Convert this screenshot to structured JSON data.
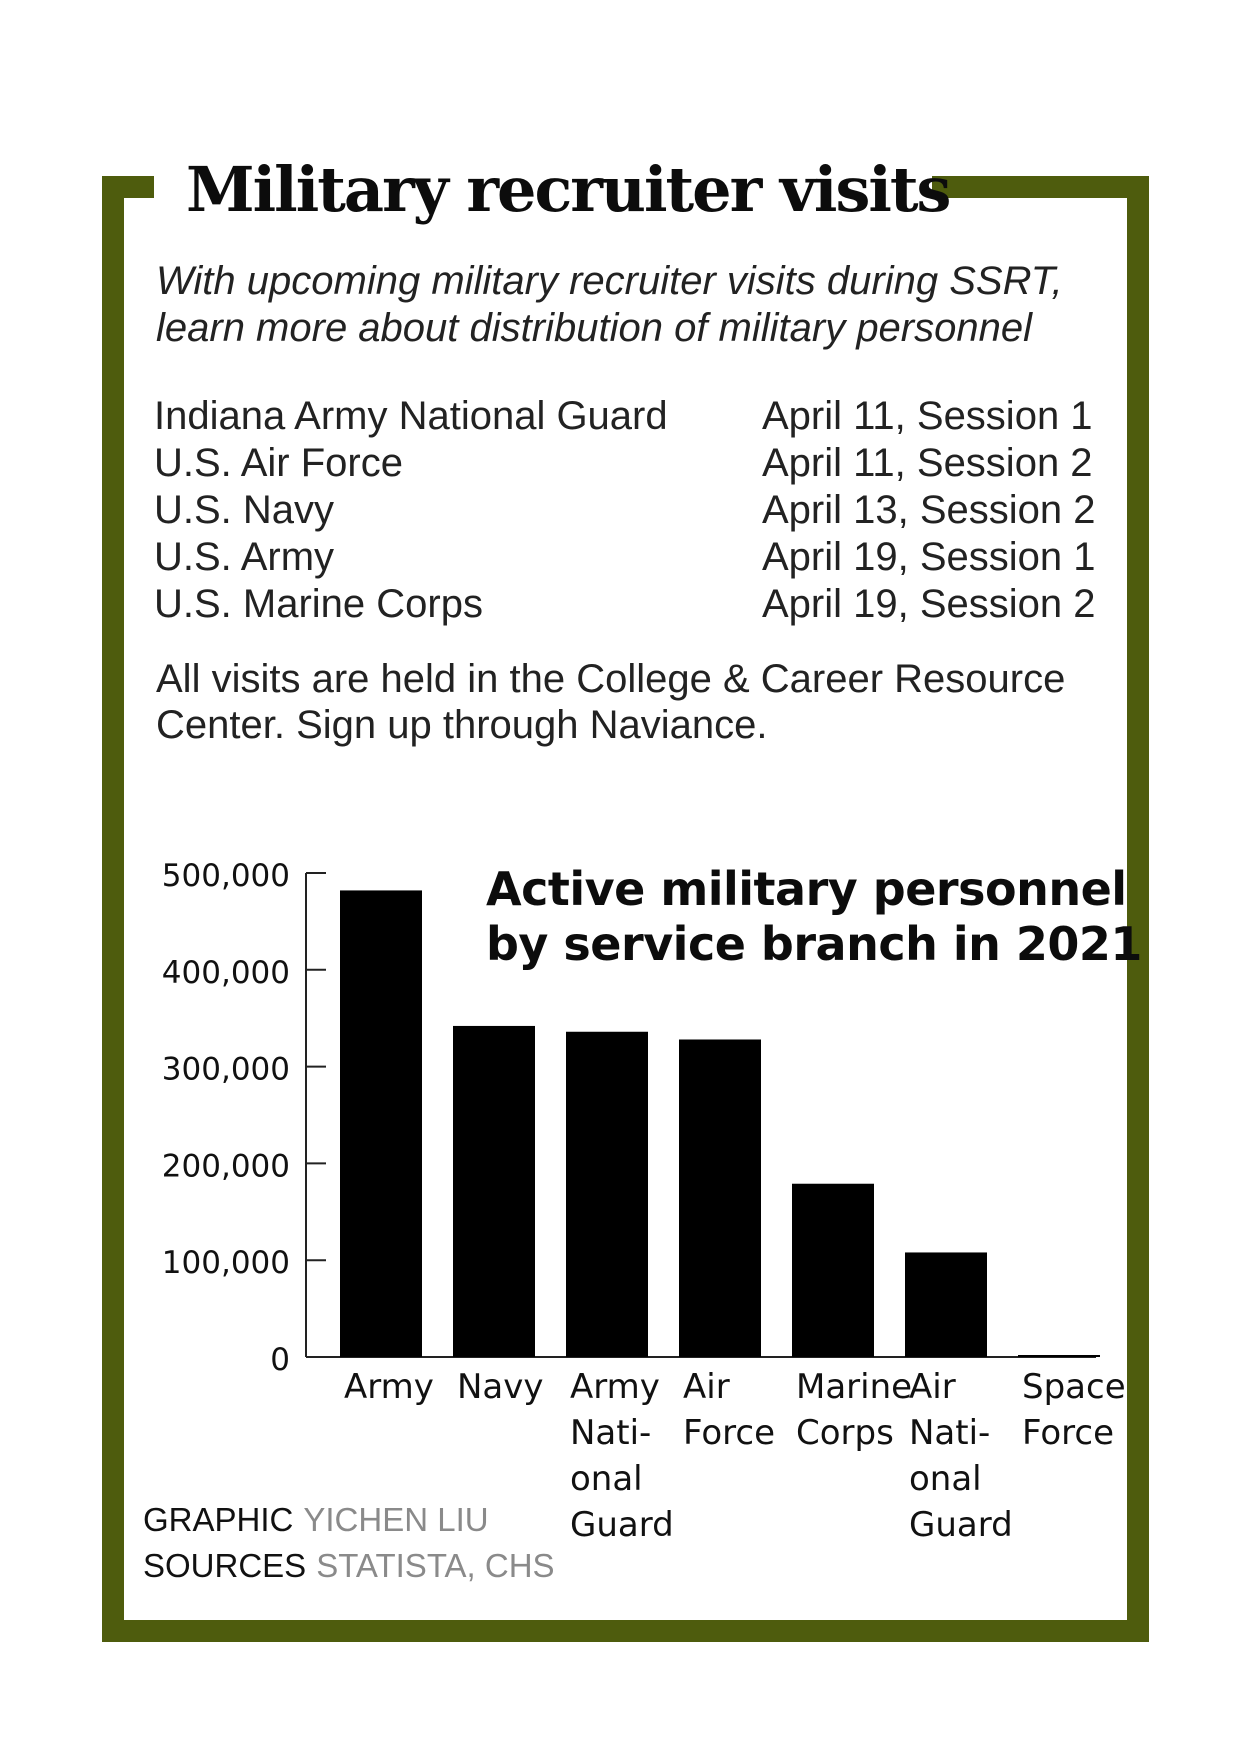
{
  "header": {
    "title": "Military recruiter visits",
    "subtitle_line1": "With upcoming military recruiter visits during SSRT,",
    "subtitle_line2": "learn more about distribution of military personnel"
  },
  "visits": [
    {
      "branch": "Indiana Army National Guard",
      "date": "April 11,  Session 1"
    },
    {
      "branch": "U.S. Air Force",
      "date": "April 11, Session 2"
    },
    {
      "branch": "U.S. Navy",
      "date": "April 13, Session 2"
    },
    {
      "branch": "U.S. Army",
      "date": "April 19, Session 1"
    },
    {
      "branch": "U.S. Marine Corps",
      "date": "April 19, Session 2"
    }
  ],
  "note": {
    "line1": "All visits are held in the College & Career Resource",
    "line2": "Center. Sign up through Naviance."
  },
  "credits": {
    "graphic_label": "GRAPHIC",
    "graphic_name": "YICHEN LIU",
    "sources_label": "SOURCES",
    "sources_name": "STATISTA, CHS"
  },
  "colors": {
    "frame": "#4e5c0d",
    "bars": "#000000"
  },
  "chart_data": {
    "type": "bar",
    "title_line1": "Active military personnel",
    "title_line2": "by service branch in 2021",
    "categories": [
      [
        "Army"
      ],
      [
        "Navy"
      ],
      [
        "Army",
        "Nati-",
        "onal",
        "Guard"
      ],
      [
        "Air",
        "Force"
      ],
      [
        "Marine",
        "Corps"
      ],
      [
        "Air",
        "Nati-",
        "onal",
        "Guard"
      ],
      [
        "Space",
        "Force"
      ]
    ],
    "values": [
      482000,
      342000,
      336000,
      328000,
      179000,
      108000,
      400
    ],
    "ylim": [
      0,
      500000
    ],
    "yticks": [
      0,
      100000,
      200000,
      300000,
      400000,
      500000
    ],
    "ytick_labels": [
      "0",
      "100,000",
      "200,000",
      "300,000",
      "400,000",
      "500,000"
    ],
    "xlabel": "",
    "ylabel": "",
    "grid": false
  }
}
